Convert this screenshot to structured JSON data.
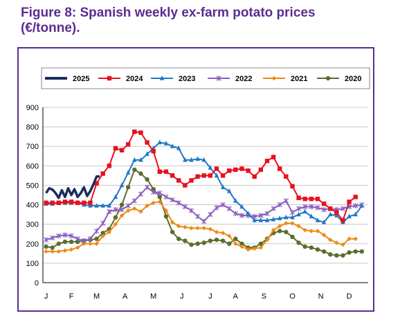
{
  "title": {
    "line1": "Figure 8: Spanish weekly ex-farm potato prices",
    "line2": "(€/tonne)."
  },
  "chart_data": {
    "type": "line",
    "title": "Figure 8: Spanish weekly ex-farm potato prices (€/tonne).",
    "xlabel": "",
    "ylabel": "",
    "x_tick_labels": [
      "J",
      "F",
      "M",
      "A",
      "M",
      "J",
      "J",
      "A",
      "S",
      "O",
      "N",
      "D"
    ],
    "x_tick_weeks": [
      1,
      9,
      17,
      26,
      35,
      44,
      53,
      61,
      70,
      79,
      88,
      97
    ],
    "y_ticks": [
      0,
      100,
      200,
      300,
      400,
      500,
      600,
      700,
      800,
      900
    ],
    "ylim": [
      0,
      900
    ],
    "grid": "horizontal",
    "legend_position": "top",
    "series": [
      {
        "name": "2025",
        "color": "#1a2c5e",
        "marker": "none",
        "x": [
          1,
          2,
          3,
          4,
          5,
          6,
          7,
          8,
          9,
          10,
          11,
          12,
          13,
          14,
          15,
          16,
          17,
          18
        ],
        "y": [
          460,
          485,
          478,
          460,
          435,
          475,
          440,
          485,
          450,
          480,
          440,
          460,
          490,
          445,
          470,
          505,
          545,
          545
        ]
      },
      {
        "name": "2024",
        "color": "#e8101e",
        "marker": "square",
        "x": [
          1,
          3,
          5,
          7,
          9,
          11,
          13,
          15,
          17,
          19,
          21,
          23,
          25,
          27,
          29,
          31,
          33,
          35,
          37,
          39,
          41,
          43,
          45,
          47,
          49,
          51,
          53,
          55,
          57,
          59,
          61,
          63,
          65,
          67,
          69,
          71,
          73,
          75,
          77,
          79,
          81,
          83,
          85,
          87,
          89,
          91,
          93,
          95,
          97,
          99
        ],
        "y": [
          410,
          410,
          410,
          415,
          415,
          410,
          410,
          410,
          510,
          560,
          600,
          690,
          680,
          710,
          775,
          770,
          720,
          675,
          570,
          570,
          550,
          525,
          500,
          525,
          545,
          550,
          550,
          585,
          550,
          575,
          580,
          585,
          575,
          545,
          580,
          625,
          645,
          585,
          545,
          495,
          435,
          430,
          430,
          430,
          405,
          380,
          360,
          320,
          415,
          440
        ]
      },
      {
        "name": "2023",
        "color": "#1f78c8",
        "marker": "triangle",
        "x": [
          1,
          3,
          5,
          7,
          9,
          11,
          13,
          15,
          17,
          19,
          21,
          23,
          25,
          27,
          29,
          31,
          33,
          35,
          37,
          39,
          41,
          43,
          45,
          47,
          49,
          51,
          53,
          55,
          57,
          59,
          61,
          63,
          65,
          67,
          69,
          71,
          73,
          75,
          77,
          79,
          81,
          83,
          85,
          87,
          89,
          91,
          93,
          95,
          97,
          99,
          101
        ],
        "y": [
          405,
          405,
          410,
          410,
          410,
          410,
          400,
          395,
          395,
          395,
          395,
          440,
          500,
          565,
          630,
          630,
          660,
          690,
          720,
          715,
          700,
          690,
          630,
          630,
          635,
          630,
          590,
          550,
          490,
          470,
          420,
          390,
          355,
          320,
          320,
          320,
          325,
          330,
          335,
          335,
          350,
          365,
          340,
          320,
          310,
          350,
          345,
          310,
          340,
          350,
          395
        ]
      },
      {
        "name": "2022",
        "color": "#8b5dbf",
        "marker": "star",
        "x": [
          1,
          3,
          5,
          7,
          9,
          11,
          13,
          15,
          17,
          19,
          21,
          23,
          25,
          27,
          29,
          31,
          33,
          35,
          37,
          39,
          41,
          43,
          45,
          47,
          49,
          51,
          53,
          55,
          57,
          59,
          61,
          63,
          65,
          67,
          69,
          71,
          73,
          75,
          77,
          79,
          81,
          83,
          85,
          87,
          89,
          91,
          93,
          95,
          97,
          99,
          101
        ],
        "y": [
          220,
          230,
          240,
          245,
          240,
          225,
          215,
          225,
          265,
          305,
          365,
          375,
          375,
          395,
          420,
          455,
          490,
          465,
          460,
          440,
          425,
          410,
          390,
          370,
          340,
          315,
          350,
          385,
          400,
          380,
          355,
          345,
          345,
          340,
          345,
          355,
          380,
          400,
          420,
          360,
          380,
          390,
          390,
          385,
          375,
          380,
          375,
          380,
          390,
          395,
          400
        ]
      },
      {
        "name": "2021",
        "color": "#ee8a17",
        "marker": "diamond",
        "x": [
          1,
          3,
          5,
          7,
          9,
          11,
          13,
          15,
          17,
          19,
          21,
          23,
          25,
          27,
          29,
          31,
          33,
          35,
          37,
          39,
          41,
          43,
          45,
          47,
          49,
          51,
          53,
          55,
          57,
          59,
          61,
          63,
          65,
          67,
          69,
          71,
          73,
          75,
          77,
          79,
          81,
          83,
          85,
          87,
          89,
          91,
          93,
          95,
          97,
          99
        ],
        "y": [
          160,
          160,
          160,
          165,
          170,
          180,
          200,
          200,
          200,
          240,
          260,
          300,
          345,
          370,
          380,
          365,
          395,
          410,
          415,
          370,
          310,
          290,
          285,
          280,
          280,
          280,
          275,
          260,
          255,
          240,
          200,
          185,
          170,
          175,
          180,
          220,
          270,
          290,
          305,
          305,
          290,
          270,
          265,
          265,
          245,
          220,
          205,
          195,
          225,
          225
        ]
      },
      {
        "name": "2020",
        "color": "#5a6e2c",
        "marker": "circle",
        "x": [
          1,
          3,
          5,
          7,
          9,
          11,
          13,
          15,
          17,
          19,
          21,
          23,
          25,
          27,
          29,
          31,
          33,
          35,
          37,
          39,
          41,
          43,
          45,
          47,
          49,
          51,
          53,
          55,
          57,
          59,
          61,
          63,
          65,
          67,
          69,
          71,
          73,
          75,
          77,
          79,
          81,
          83,
          85,
          87,
          89,
          91,
          93,
          95,
          97,
          99,
          101
        ],
        "y": [
          185,
          180,
          200,
          210,
          210,
          210,
          215,
          220,
          225,
          255,
          275,
          335,
          400,
          490,
          580,
          560,
          530,
          480,
          440,
          340,
          260,
          225,
          215,
          195,
          200,
          205,
          215,
          220,
          215,
          200,
          225,
          200,
          180,
          180,
          200,
          225,
          255,
          265,
          260,
          235,
          205,
          185,
          180,
          170,
          160,
          145,
          140,
          140,
          155,
          160,
          160
        ]
      }
    ]
  }
}
